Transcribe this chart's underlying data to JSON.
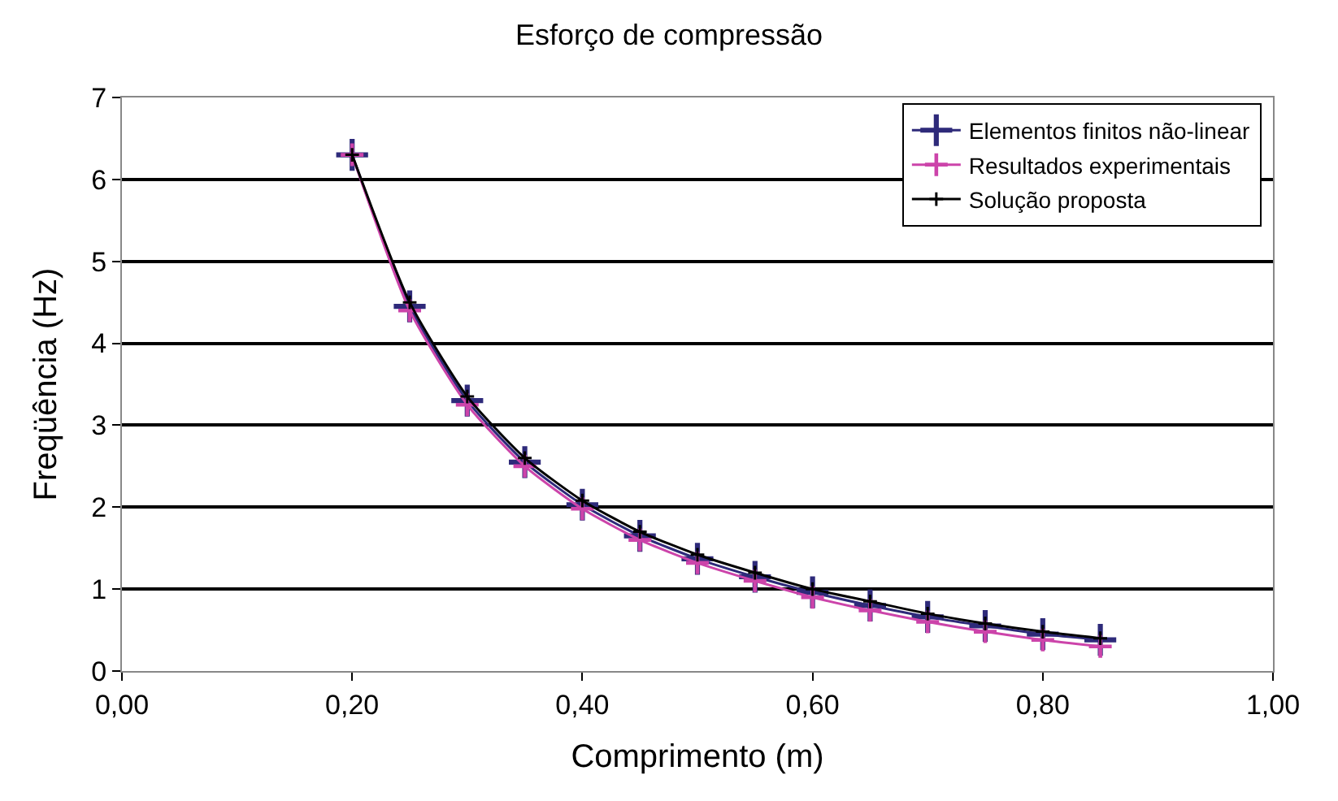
{
  "chart_data": {
    "type": "line",
    "title": "Esforço de compressão",
    "xlabel": "Comprimento (m)",
    "ylabel": "Freqüência (Hz)",
    "x": [
      0.2,
      0.25,
      0.3,
      0.35,
      0.4,
      0.45,
      0.5,
      0.55,
      0.6,
      0.65,
      0.7,
      0.75,
      0.8,
      0.85
    ],
    "series": [
      {
        "name": "Elementos finitos não-linear",
        "color": "#2e2a7a",
        "values": [
          6.3,
          4.45,
          3.3,
          2.55,
          2.03,
          1.65,
          1.37,
          1.15,
          0.96,
          0.8,
          0.66,
          0.55,
          0.45,
          0.38
        ]
      },
      {
        "name": "Resultados experimentais",
        "color": "#cc44aa",
        "values": [
          6.3,
          4.4,
          3.25,
          2.5,
          1.98,
          1.6,
          1.32,
          1.1,
          0.9,
          0.74,
          0.6,
          0.48,
          0.38,
          0.3
        ]
      },
      {
        "name": "Solução proposta",
        "color": "#000000",
        "values": [
          6.3,
          4.5,
          3.35,
          2.6,
          2.08,
          1.7,
          1.42,
          1.2,
          1.0,
          0.85,
          0.7,
          0.58,
          0.48,
          0.4
        ]
      }
    ],
    "xlim": [
      0,
      1
    ],
    "xticks": [
      {
        "value": 0,
        "label": "0,00"
      },
      {
        "value": 0.2,
        "label": "0,20"
      },
      {
        "value": 0.4,
        "label": "0,40"
      },
      {
        "value": 0.6,
        "label": "0,60"
      },
      {
        "value": 0.8,
        "label": "0,80"
      },
      {
        "value": 1,
        "label": "1,00"
      }
    ],
    "ylim": [
      0,
      7
    ],
    "yticks": [
      0,
      1,
      2,
      3,
      4,
      5,
      6,
      7
    ],
    "grid": "y",
    "legend": "top right",
    "marker": "cross",
    "line_style": "solid"
  }
}
